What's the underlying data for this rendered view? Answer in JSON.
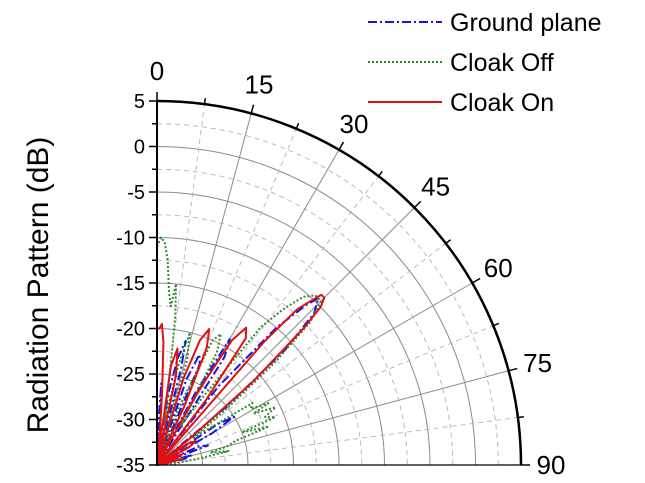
{
  "chart_data": {
    "type": "polar-line",
    "ylabel": "Radiation Pattern (dB)",
    "radial_range": [
      -35,
      5
    ],
    "radial_ticks": [
      "5",
      "0",
      "-5",
      "-10",
      "-15",
      "-20",
      "-25",
      "-30",
      "-35"
    ],
    "angle_range": [
      0,
      90
    ],
    "angle_ticks": [
      "0",
      "15",
      "30",
      "45",
      "60",
      "75",
      "90"
    ],
    "grid": true,
    "legend_position": "top-right",
    "series": [
      {
        "name": "Ground plane",
        "color": "#1414e6",
        "dash": "dash-dot",
        "points": [
          [
            0,
            -35
          ],
          [
            2,
            -30
          ],
          [
            3,
            -26
          ],
          [
            4,
            -29
          ],
          [
            6,
            -35
          ],
          [
            9,
            -27
          ],
          [
            11,
            -23
          ],
          [
            13,
            -21
          ],
          [
            14,
            -24
          ],
          [
            16,
            -35
          ],
          [
            19,
            -25
          ],
          [
            21,
            -22
          ],
          [
            23,
            -23
          ],
          [
            25,
            -35
          ],
          [
            28,
            -26
          ],
          [
            30,
            -19
          ],
          [
            32,
            -21
          ],
          [
            34,
            -35
          ],
          [
            38,
            -24
          ],
          [
            41,
            -15
          ],
          [
            43,
            -11
          ],
          [
            44,
            -9.5
          ],
          [
            46,
            -11
          ],
          [
            48,
            -16
          ],
          [
            50,
            -25
          ],
          [
            52,
            -35
          ],
          [
            56,
            -27
          ],
          [
            58,
            -25
          ],
          [
            60,
            -28
          ],
          [
            62,
            -35
          ],
          [
            66,
            -30
          ],
          [
            69,
            -29
          ],
          [
            71,
            -35
          ],
          [
            74,
            -31
          ],
          [
            78,
            -32
          ],
          [
            81,
            -35
          ],
          [
            90,
            -35
          ]
        ]
      },
      {
        "name": "Cloak Off",
        "color": "#2e8b2e",
        "dash": "dotted",
        "points": [
          [
            0,
            -11
          ],
          [
            1,
            -10
          ],
          [
            2,
            -10.5
          ],
          [
            3,
            -12.5
          ],
          [
            4,
            -16
          ],
          [
            5,
            -17.5
          ],
          [
            6,
            -15
          ],
          [
            7,
            -18.5
          ],
          [
            8,
            -25
          ],
          [
            10,
            -30
          ],
          [
            12,
            -24
          ],
          [
            14,
            -20
          ],
          [
            16,
            -23
          ],
          [
            18,
            -35
          ],
          [
            21,
            -28
          ],
          [
            24,
            -20
          ],
          [
            26,
            -19
          ],
          [
            28,
            -21
          ],
          [
            31,
            -30
          ],
          [
            34,
            -26
          ],
          [
            37,
            -16
          ],
          [
            39,
            -13
          ],
          [
            41,
            -10.5
          ],
          [
            43,
            -9.5
          ],
          [
            45,
            -9.5
          ],
          [
            47,
            -12
          ],
          [
            49,
            -18
          ],
          [
            51,
            -25
          ],
          [
            53,
            -30
          ],
          [
            55,
            -28
          ],
          [
            57,
            -22.5
          ],
          [
            59,
            -23
          ],
          [
            61,
            -21
          ],
          [
            62,
            -23
          ],
          [
            64,
            -20.5
          ],
          [
            66,
            -22
          ],
          [
            68,
            -21
          ],
          [
            69,
            -25
          ],
          [
            71,
            -22
          ],
          [
            73,
            -26
          ],
          [
            75,
            -27
          ],
          [
            77,
            -29
          ],
          [
            79,
            -27
          ],
          [
            81,
            -30
          ],
          [
            83,
            -32
          ],
          [
            85,
            -33
          ],
          [
            87,
            -35
          ],
          [
            90,
            -35
          ]
        ]
      },
      {
        "name": "Cloak On",
        "color": "#e01010",
        "dash": "solid",
        "points": [
          [
            0,
            -20
          ],
          [
            1,
            -20
          ],
          [
            2,
            -19.5
          ],
          [
            3,
            -21.5
          ],
          [
            4,
            -27
          ],
          [
            5,
            -31
          ],
          [
            6,
            -35
          ],
          [
            8,
            -24
          ],
          [
            10,
            -22
          ],
          [
            12,
            -25
          ],
          [
            14,
            -35
          ],
          [
            17,
            -25
          ],
          [
            19,
            -20.5
          ],
          [
            21,
            -19
          ],
          [
            23,
            -21
          ],
          [
            25,
            -28
          ],
          [
            27,
            -35
          ],
          [
            29,
            -26
          ],
          [
            31,
            -19
          ],
          [
            33,
            -17
          ],
          [
            35,
            -18
          ],
          [
            37,
            -26
          ],
          [
            39,
            -35
          ],
          [
            41,
            -17
          ],
          [
            42,
            -12
          ],
          [
            43,
            -10.5
          ],
          [
            44,
            -9
          ],
          [
            45,
            -9
          ],
          [
            46,
            -10
          ],
          [
            47,
            -13
          ],
          [
            49,
            -21
          ],
          [
            51,
            -30
          ],
          [
            52,
            -35
          ],
          [
            55,
            -31
          ],
          [
            58,
            -30
          ],
          [
            61,
            -31
          ],
          [
            64,
            -35
          ],
          [
            67,
            -32
          ],
          [
            70,
            -33
          ],
          [
            73,
            -35
          ],
          [
            76,
            -32
          ],
          [
            80,
            -34
          ],
          [
            84,
            -35
          ],
          [
            90,
            -35
          ]
        ]
      }
    ]
  }
}
